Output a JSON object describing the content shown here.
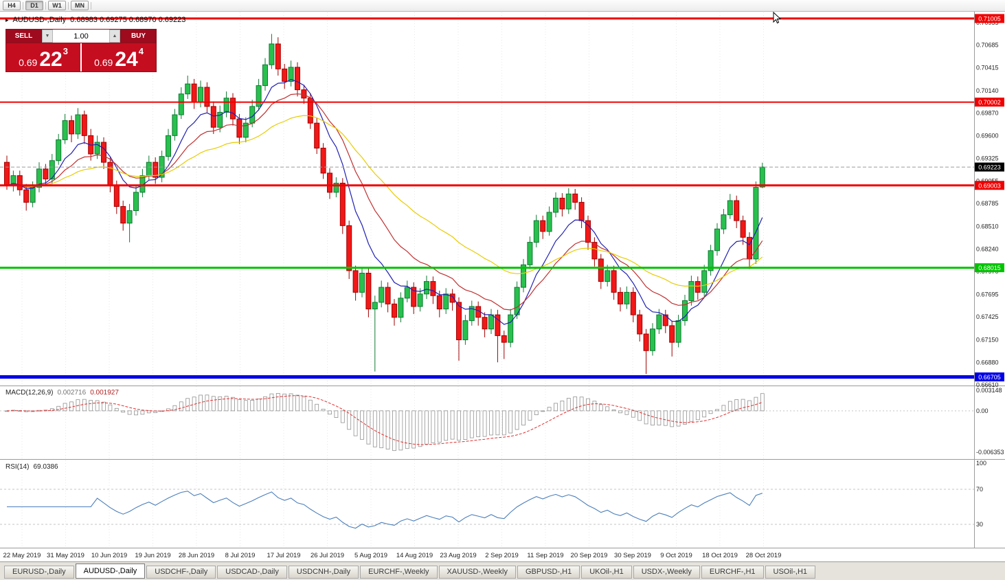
{
  "toolbar": {
    "timeframes": [
      {
        "label": "H4",
        "active": false
      },
      {
        "label": "D1",
        "active": true
      },
      {
        "label": "W1",
        "active": false
      },
      {
        "label": "MN",
        "active": false
      }
    ]
  },
  "chart_header": {
    "toggle_icon": "▸",
    "title": "AUDUSD-,Daily",
    "ohlc": "0.68983 0.69275 0.68970 0.69223"
  },
  "trade_panel": {
    "sell_label": "SELL",
    "buy_label": "BUY",
    "volume": "1.00",
    "spin_down_icon": "▼",
    "spin_up_icon": "▲",
    "sell_price": {
      "base": "0.69",
      "big": "22",
      "sup": "3"
    },
    "buy_price": {
      "base": "0.69",
      "big": "24",
      "sup": "4"
    }
  },
  "price_axis": {
    "ticks": [
      "0.70955",
      "0.70685",
      "0.70415",
      "0.70140",
      "0.69870",
      "0.69600",
      "0.69325",
      "0.69055",
      "0.68785",
      "0.68510",
      "0.68240",
      "0.67970",
      "0.67695",
      "0.67425",
      "0.67150",
      "0.66880",
      "0.66610"
    ],
    "current_price_label": "0.69223"
  },
  "levels": {
    "current": {
      "price": 0.69223,
      "label": "0.69223",
      "badge_color": "#000000"
    },
    "hlines": [
      {
        "price": 0.71005,
        "label": "0.71005",
        "color": "#f00000",
        "width": 3
      },
      {
        "price": 0.70002,
        "label": "0.70002",
        "color": "#f00000",
        "width": 2
      },
      {
        "price": 0.69003,
        "label": "0.69003",
        "color": "#f00000",
        "width": 3
      },
      {
        "price": 0.68015,
        "label": "0.68015",
        "color": "#00c400",
        "width": 3
      },
      {
        "price": 0.66705,
        "label": "0.66705",
        "color": "#0000e6",
        "width": 5
      }
    ]
  },
  "indicators": {
    "macd": {
      "name": "MACD(12,26,9)",
      "value_main": "0.002716",
      "value_signal": "0.001927",
      "axis_max": "0.003148",
      "axis_zero": "0.00",
      "axis_min": "-0.006353",
      "scale_max": 0.003148,
      "scale_min": -0.006353,
      "histogram_color": "#909090",
      "signal_color": "#e03030"
    },
    "rsi": {
      "name": "RSI(14)",
      "value": "69.0386",
      "axis": [
        "100",
        "70",
        "30"
      ],
      "levels": [
        70,
        30
      ],
      "line_color": "#4a7ebb"
    }
  },
  "x_axis": {
    "dates": [
      "22 May 2019",
      "31 May 2019",
      "10 Jun 2019",
      "19 Jun 2019",
      "28 Jun 2019",
      "8 Jul 2019",
      "17 Jul 2019",
      "26 Jul 2019",
      "5 Aug 2019",
      "14 Aug 2019",
      "23 Aug 2019",
      "2 Sep 2019",
      "11 Sep 2019",
      "20 Sep 2019",
      "30 Sep 2019",
      "9 Oct 2019",
      "18 Oct 2019",
      "28 Oct 2019"
    ]
  },
  "tabs": [
    {
      "label": "EURUSD-,Daily",
      "active": false
    },
    {
      "label": "AUDUSD-,Daily",
      "active": true
    },
    {
      "label": "USDCHF-,Daily",
      "active": false
    },
    {
      "label": "USDCAD-,Daily",
      "active": false
    },
    {
      "label": "USDCNH-,Daily",
      "active": false
    },
    {
      "label": "EURCHF-,Weekly",
      "active": false
    },
    {
      "label": "XAUUSD-,Weekly",
      "active": false
    },
    {
      "label": "GBPUSD-,H1",
      "active": false
    },
    {
      "label": "UKOil-,H1",
      "active": false
    },
    {
      "label": "USDX-,Weekly",
      "active": false
    },
    {
      "label": "EURCHF-,H1",
      "active": false
    },
    {
      "label": "USOil-,H1",
      "active": false
    }
  ],
  "chart_data": {
    "type": "candlestick",
    "symbol": "AUDUSD",
    "timeframe": "Daily",
    "colors": {
      "up_fill": "#29c04e",
      "up_stroke": "#0e7a32",
      "down_fill": "#f21818",
      "down_stroke": "#a00000"
    },
    "moving_averages": [
      {
        "period": 8,
        "color": "#2020b4"
      },
      {
        "period": 16,
        "color": "#c03030"
      },
      {
        "period": 34,
        "color": "#e8cc00"
      }
    ],
    "candles": [
      [
        0.6928,
        0.6936,
        0.6895,
        0.69
      ],
      [
        0.69,
        0.6918,
        0.6893,
        0.6912
      ],
      [
        0.6912,
        0.6918,
        0.6888,
        0.6895
      ],
      [
        0.6895,
        0.6902,
        0.687,
        0.688
      ],
      [
        0.688,
        0.6905,
        0.6874,
        0.6898
      ],
      [
        0.6898,
        0.6928,
        0.6892,
        0.692
      ],
      [
        0.692,
        0.6926,
        0.69,
        0.6908
      ],
      [
        0.6908,
        0.6938,
        0.6902,
        0.693
      ],
      [
        0.693,
        0.6962,
        0.6925,
        0.6955
      ],
      [
        0.6955,
        0.6986,
        0.695,
        0.6978
      ],
      [
        0.6978,
        0.6984,
        0.6952,
        0.6962
      ],
      [
        0.6962,
        0.6993,
        0.6956,
        0.6985
      ],
      [
        0.6985,
        0.699,
        0.695,
        0.696
      ],
      [
        0.696,
        0.6968,
        0.693,
        0.6938
      ],
      [
        0.6938,
        0.696,
        0.6932,
        0.6952
      ],
      [
        0.6952,
        0.6958,
        0.692,
        0.6928
      ],
      [
        0.6928,
        0.6934,
        0.6892,
        0.69
      ],
      [
        0.69,
        0.6906,
        0.6866,
        0.6875
      ],
      [
        0.6875,
        0.6882,
        0.6846,
        0.6855
      ],
      [
        0.6855,
        0.6878,
        0.6832,
        0.687
      ],
      [
        0.687,
        0.69,
        0.6864,
        0.6892
      ],
      [
        0.6892,
        0.692,
        0.6886,
        0.6912
      ],
      [
        0.6912,
        0.6936,
        0.6906,
        0.6928
      ],
      [
        0.6928,
        0.6934,
        0.6902,
        0.691
      ],
      [
        0.691,
        0.6942,
        0.6904,
        0.6935
      ],
      [
        0.6935,
        0.6968,
        0.693,
        0.696
      ],
      [
        0.696,
        0.6992,
        0.6954,
        0.6985
      ],
      [
        0.6985,
        0.7018,
        0.698,
        0.701
      ],
      [
        0.701,
        0.7032,
        0.7004,
        0.7022
      ],
      [
        0.7022,
        0.7028,
        0.6992,
        0.7
      ],
      [
        0.7,
        0.7026,
        0.6994,
        0.7018
      ],
      [
        0.7018,
        0.7024,
        0.6988,
        0.6995
      ],
      [
        0.6995,
        0.7001,
        0.6962,
        0.697
      ],
      [
        0.697,
        0.6996,
        0.6964,
        0.6988
      ],
      [
        0.6988,
        0.7013,
        0.6982,
        0.7005
      ],
      [
        0.7005,
        0.7011,
        0.6972,
        0.698
      ],
      [
        0.698,
        0.6986,
        0.695,
        0.6958
      ],
      [
        0.6958,
        0.6982,
        0.6952,
        0.6975
      ],
      [
        0.6975,
        0.7003,
        0.697,
        0.6995
      ],
      [
        0.6995,
        0.7028,
        0.699,
        0.702
      ],
      [
        0.702,
        0.7053,
        0.7014,
        0.7045
      ],
      [
        0.7045,
        0.7082,
        0.704,
        0.707
      ],
      [
        0.707,
        0.7078,
        0.7032,
        0.704
      ],
      [
        0.704,
        0.7046,
        0.7016,
        0.7025
      ],
      [
        0.7025,
        0.705,
        0.7019,
        0.7042
      ],
      [
        0.7042,
        0.7048,
        0.7007,
        0.7015
      ],
      [
        0.7015,
        0.7021,
        0.6998,
        0.7005
      ],
      [
        0.7005,
        0.7011,
        0.6968,
        0.6975
      ],
      [
        0.6975,
        0.6981,
        0.6938,
        0.6945
      ],
      [
        0.6945,
        0.6951,
        0.6908,
        0.6915
      ],
      [
        0.6915,
        0.6921,
        0.6884,
        0.6892
      ],
      [
        0.6892,
        0.691,
        0.6886,
        0.6903
      ],
      [
        0.6903,
        0.6909,
        0.6842,
        0.6852
      ],
      [
        0.6852,
        0.6858,
        0.6788,
        0.6798
      ],
      [
        0.6798,
        0.6804,
        0.6762,
        0.6772
      ],
      [
        0.6772,
        0.6801,
        0.6766,
        0.6795
      ],
      [
        0.6795,
        0.6801,
        0.6742,
        0.6752
      ],
      [
        0.6752,
        0.6768,
        0.6677,
        0.676
      ],
      [
        0.676,
        0.6786,
        0.6754,
        0.6778
      ],
      [
        0.6778,
        0.6784,
        0.6748,
        0.6758
      ],
      [
        0.6758,
        0.6764,
        0.6732,
        0.6742
      ],
      [
        0.6742,
        0.6772,
        0.6736,
        0.6765
      ],
      [
        0.6765,
        0.6786,
        0.676,
        0.6778
      ],
      [
        0.6778,
        0.6784,
        0.6746,
        0.6755
      ],
      [
        0.6755,
        0.6777,
        0.6749,
        0.677
      ],
      [
        0.677,
        0.6792,
        0.6764,
        0.6785
      ],
      [
        0.6785,
        0.6791,
        0.6758,
        0.6768
      ],
      [
        0.6768,
        0.6774,
        0.6742,
        0.6752
      ],
      [
        0.6752,
        0.6777,
        0.6746,
        0.677
      ],
      [
        0.677,
        0.6776,
        0.675,
        0.676
      ],
      [
        0.676,
        0.6766,
        0.669,
        0.6715
      ],
      [
        0.6715,
        0.6745,
        0.6709,
        0.6738
      ],
      [
        0.6738,
        0.6762,
        0.6732,
        0.6755
      ],
      [
        0.6755,
        0.6761,
        0.6732,
        0.6742
      ],
      [
        0.6742,
        0.6748,
        0.6718,
        0.6728
      ],
      [
        0.6728,
        0.6752,
        0.6722,
        0.6745
      ],
      [
        0.6745,
        0.6751,
        0.6688,
        0.672
      ],
      [
        0.672,
        0.6726,
        0.6692,
        0.6712
      ],
      [
        0.6712,
        0.6752,
        0.6706,
        0.6745
      ],
      [
        0.6745,
        0.6785,
        0.674,
        0.6778
      ],
      [
        0.6778,
        0.6812,
        0.6772,
        0.6805
      ],
      [
        0.6805,
        0.6839,
        0.68,
        0.6832
      ],
      [
        0.6832,
        0.6865,
        0.6826,
        0.6858
      ],
      [
        0.6858,
        0.6864,
        0.6836,
        0.6845
      ],
      [
        0.6845,
        0.6875,
        0.684,
        0.6868
      ],
      [
        0.6868,
        0.6892,
        0.6862,
        0.6885
      ],
      [
        0.6885,
        0.6891,
        0.6863,
        0.6872
      ],
      [
        0.6872,
        0.6897,
        0.6866,
        0.689
      ],
      [
        0.689,
        0.6896,
        0.6871,
        0.688
      ],
      [
        0.688,
        0.6886,
        0.6849,
        0.6858
      ],
      [
        0.6858,
        0.6864,
        0.6823,
        0.6832
      ],
      [
        0.6832,
        0.6838,
        0.6803,
        0.6812
      ],
      [
        0.6812,
        0.6818,
        0.6776,
        0.6785
      ],
      [
        0.6785,
        0.6805,
        0.6779,
        0.6798
      ],
      [
        0.6798,
        0.6804,
        0.6763,
        0.6772
      ],
      [
        0.6772,
        0.6778,
        0.6749,
        0.6758
      ],
      [
        0.6758,
        0.6779,
        0.6752,
        0.6772
      ],
      [
        0.6772,
        0.6778,
        0.6736,
        0.6745
      ],
      [
        0.6745,
        0.6751,
        0.6713,
        0.6722
      ],
      [
        0.6722,
        0.6728,
        0.6674,
        0.6702
      ],
      [
        0.6702,
        0.6735,
        0.6696,
        0.6728
      ],
      [
        0.6728,
        0.6752,
        0.6722,
        0.6745
      ],
      [
        0.6745,
        0.6751,
        0.6723,
        0.6732
      ],
      [
        0.6732,
        0.6738,
        0.6695,
        0.6712
      ],
      [
        0.6712,
        0.6745,
        0.6706,
        0.6738
      ],
      [
        0.6738,
        0.6769,
        0.6732,
        0.6762
      ],
      [
        0.6762,
        0.6792,
        0.6756,
        0.6785
      ],
      [
        0.6785,
        0.6791,
        0.6763,
        0.6772
      ],
      [
        0.6772,
        0.6805,
        0.6766,
        0.6798
      ],
      [
        0.6798,
        0.6829,
        0.6792,
        0.6822
      ],
      [
        0.6822,
        0.6855,
        0.6816,
        0.6848
      ],
      [
        0.6848,
        0.6872,
        0.6842,
        0.6865
      ],
      [
        0.6865,
        0.689,
        0.686,
        0.6882
      ],
      [
        0.6882,
        0.6888,
        0.6849,
        0.6858
      ],
      [
        0.6858,
        0.6864,
        0.6829,
        0.6838
      ],
      [
        0.6838,
        0.6844,
        0.68,
        0.6812
      ],
      [
        0.6812,
        0.6905,
        0.6806,
        0.6898
      ],
      [
        0.68983,
        0.69275,
        0.6897,
        0.69223
      ]
    ]
  }
}
